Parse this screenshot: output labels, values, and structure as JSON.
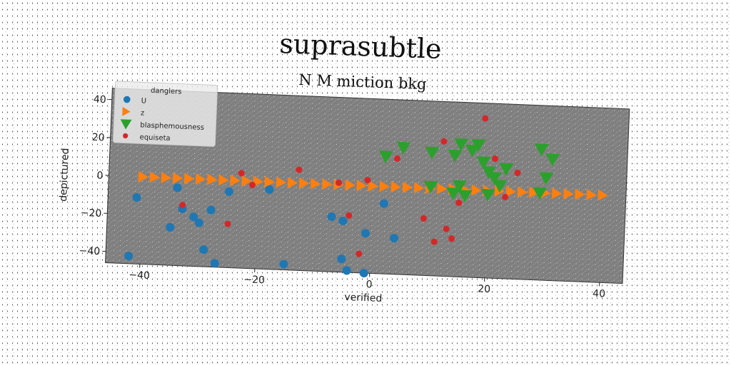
{
  "chart_data": {
    "type": "scatter",
    "title": "suprasubtle",
    "subtitle": "N M miction bkg",
    "xlabel": "verified",
    "ylabel": "depictured",
    "xlim": [
      -46,
      44
    ],
    "ylim": [
      -46,
      46
    ],
    "xticks": [
      -40,
      -20,
      0,
      20,
      40
    ],
    "yticks": [
      -40,
      -20,
      0,
      20,
      40
    ],
    "xtick_labels": [
      "−40",
      "−20",
      "0",
      "20",
      "40"
    ],
    "ytick_labels": [
      "−40",
      "−20",
      "0",
      "20",
      "40"
    ],
    "grid": false,
    "legend": {
      "title": "danglers",
      "position": "upper-left"
    },
    "series": [
      {
        "name": "U",
        "color": "#1f77b4",
        "marker": "circle",
        "points": [
          [
            -41,
            -11
          ],
          [
            -42,
            -42
          ],
          [
            -35,
            -26
          ],
          [
            -34,
            -5
          ],
          [
            -33,
            -16
          ],
          [
            -31,
            -20
          ],
          [
            -30,
            -23
          ],
          [
            -29,
            -37
          ],
          [
            -28,
            -16
          ],
          [
            -27,
            -44
          ],
          [
            -25,
            -6
          ],
          [
            -18,
            -4
          ],
          [
            -15,
            -43
          ],
          [
            -7,
            -17
          ],
          [
            -5,
            -19
          ],
          [
            -5,
            -39
          ],
          [
            -4,
            -45
          ],
          [
            -1,
            -25
          ],
          [
            -1,
            -46
          ],
          [
            2,
            -9
          ],
          [
            4,
            -27
          ]
        ]
      },
      {
        "name": "z",
        "color": "#ff7f0e",
        "marker": "triangle-right",
        "points": [
          [
            -40,
            0
          ],
          [
            -38,
            0
          ],
          [
            -36,
            0
          ],
          [
            -34,
            0
          ],
          [
            -32,
            0
          ],
          [
            -30,
            0
          ],
          [
            -28,
            0
          ],
          [
            -26,
            0
          ],
          [
            -24,
            0
          ],
          [
            -22,
            0
          ],
          [
            -20,
            0
          ],
          [
            -18,
            0
          ],
          [
            -16,
            0
          ],
          [
            -14,
            0
          ],
          [
            -12,
            0
          ],
          [
            -10,
            0
          ],
          [
            -8,
            0
          ],
          [
            -6,
            0
          ],
          [
            -4,
            0
          ],
          [
            -2,
            0
          ],
          [
            0,
            0
          ],
          [
            2,
            0
          ],
          [
            4,
            0
          ],
          [
            6,
            0
          ],
          [
            8,
            0
          ],
          [
            10,
            0
          ],
          [
            12,
            0
          ],
          [
            14,
            0
          ],
          [
            16,
            0
          ],
          [
            18,
            0
          ],
          [
            20,
            0
          ],
          [
            22,
            0
          ],
          [
            24,
            0
          ],
          [
            26,
            0
          ],
          [
            28,
            0
          ],
          [
            30,
            0
          ],
          [
            32,
            0
          ],
          [
            34,
            0
          ],
          [
            36,
            0
          ],
          [
            38,
            0
          ],
          [
            40,
            0
          ]
        ]
      },
      {
        "name": "blasphemousness",
        "color": "#2ca02c",
        "marker": "triangle-down",
        "points": [
          [
            2,
            16
          ],
          [
            5,
            21
          ],
          [
            10,
            19
          ],
          [
            10,
            1
          ],
          [
            14,
            18
          ],
          [
            14,
            -2
          ],
          [
            15,
            24
          ],
          [
            15,
            2
          ],
          [
            16,
            -3
          ],
          [
            17,
            21
          ],
          [
            18,
            24
          ],
          [
            19,
            15
          ],
          [
            20,
            10
          ],
          [
            20,
            -2
          ],
          [
            21,
            7
          ],
          [
            22,
            3
          ],
          [
            23,
            12
          ],
          [
            29,
            23
          ],
          [
            29,
            0
          ],
          [
            30,
            8
          ],
          [
            31,
            18
          ]
        ]
      },
      {
        "name": "equiseta",
        "color": "#d62728",
        "marker": "circle-small",
        "points": [
          [
            -33,
            -14
          ],
          [
            -23,
            4
          ],
          [
            -21,
            -2
          ],
          [
            -25,
            -23
          ],
          [
            -13,
            7
          ],
          [
            -6,
            1
          ],
          [
            -4,
            -16
          ],
          [
            -2,
            -36
          ],
          [
            -1,
            3
          ],
          [
            4,
            15
          ],
          [
            9,
            -16
          ],
          [
            11,
            -28
          ],
          [
            12,
            25
          ],
          [
            13,
            -21
          ],
          [
            14,
            -26
          ],
          [
            15,
            -7
          ],
          [
            19,
            38
          ],
          [
            21,
            17
          ],
          [
            23,
            -3
          ],
          [
            25,
            10
          ]
        ]
      }
    ]
  }
}
